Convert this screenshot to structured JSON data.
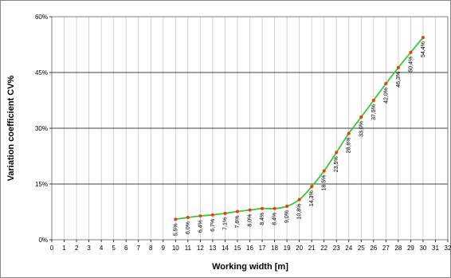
{
  "chart_data": {
    "type": "line",
    "xlabel": "Working width [m]",
    "ylabel": "Variation coefficient CV%",
    "xlim": [
      0,
      32
    ],
    "ylim": [
      0,
      60
    ],
    "x_ticks": [
      "0",
      "1",
      "2",
      "3",
      "4",
      "5",
      "6",
      "7",
      "8",
      "9",
      "10",
      "11",
      "12",
      "13",
      "14",
      "15",
      "16",
      "17",
      "18",
      "19",
      "20",
      "21",
      "22",
      "23",
      "24",
      "25",
      "26",
      "27",
      "28",
      "29",
      "30",
      "31",
      "32"
    ],
    "y_ticks": [
      "0%",
      "15%",
      "30%",
      "45%",
      "60%"
    ],
    "y_tick_values": [
      0,
      15,
      30,
      45,
      60
    ],
    "grid": true,
    "line_color": "#33cc33",
    "marker_color": "#ff3300",
    "series": [
      {
        "x": [
          10,
          11,
          12,
          13,
          14,
          15,
          16,
          17,
          18,
          19,
          20,
          21,
          22,
          23,
          24,
          25,
          26,
          27,
          28,
          29,
          30
        ],
        "values": [
          5.5,
          6.0,
          6.4,
          6.7,
          7.1,
          7.6,
          8.0,
          8.4,
          8.4,
          9.0,
          10.8,
          14.3,
          18.5,
          23.5,
          28.6,
          33.0,
          37.5,
          42.0,
          46.3,
          50.4,
          54.4
        ],
        "labels": [
          "5,5%",
          "6,0%",
          "6,4%",
          "6,7%",
          "7,1%",
          "7,6%",
          "8,0%",
          "8,4%",
          "8,4%",
          "9,0%",
          "10,8%",
          "14,3%",
          "18,5%",
          "23,5%",
          "28,6%",
          "33,0%",
          "37,5%",
          "42,0%",
          "46,3%",
          "50,4%",
          "54,4%"
        ]
      }
    ]
  }
}
